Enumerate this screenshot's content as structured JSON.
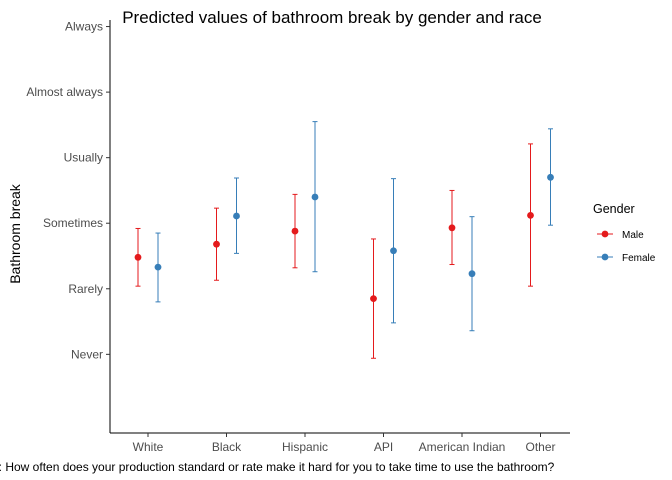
{
  "chart_data": {
    "type": "errorbar-point",
    "title": "Predicted values of bathroom break by gender and race",
    "xlabel": "",
    "ylabel": "Bathroom break",
    "caption": "n: How often does your production standard or rate make it hard for you to take time to use the bathroom?",
    "categories": [
      "White",
      "Black",
      "Hispanic",
      "API",
      "American Indian",
      "Other"
    ],
    "y_levels": [
      "Never",
      "Rarely",
      "Sometimes",
      "Usually",
      "Almost always",
      "Always"
    ],
    "y_level_values": [
      1,
      2,
      3,
      4,
      5,
      6
    ],
    "ylim": [
      -0.2,
      6.1
    ],
    "grid": false,
    "legend": {
      "title": "Gender",
      "position": "right"
    },
    "series": [
      {
        "name": "Male",
        "color": "#e41a1c",
        "estimate": [
          2.48,
          2.68,
          2.88,
          1.85,
          2.93,
          3.12
        ],
        "lower": [
          2.04,
          2.13,
          2.32,
          0.94,
          2.37,
          2.04
        ],
        "upper": [
          2.92,
          3.23,
          3.44,
          2.76,
          3.5,
          4.21
        ]
      },
      {
        "name": "Female",
        "color": "#377eb8",
        "estimate": [
          2.33,
          3.11,
          3.4,
          2.58,
          2.23,
          3.7
        ],
        "lower": [
          1.8,
          2.54,
          2.26,
          1.48,
          1.36,
          2.97
        ],
        "upper": [
          2.85,
          3.69,
          4.55,
          3.68,
          3.1,
          4.44
        ]
      }
    ]
  }
}
